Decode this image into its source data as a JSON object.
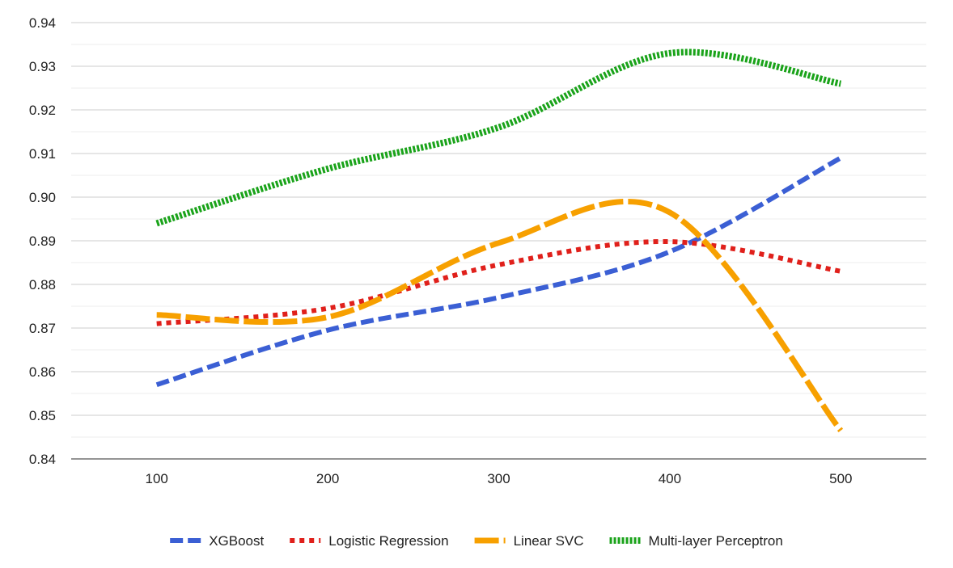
{
  "chart_data": {
    "type": "line",
    "title": "",
    "xlabel": "",
    "ylabel": "",
    "x": [
      100,
      200,
      300,
      400,
      500
    ],
    "ylim": [
      0.84,
      0.94
    ],
    "yticks": [
      "0.84",
      "0.85",
      "0.86",
      "0.87",
      "0.88",
      "0.89",
      "0.90",
      "0.91",
      "0.92",
      "0.93",
      "0.94"
    ],
    "xticks": [
      "100",
      "200",
      "300",
      "400",
      "500"
    ],
    "grid": true,
    "smooth": true,
    "legend_position": "bottom",
    "series": [
      {
        "name": "XGBoost",
        "values": [
          0.857,
          0.8695,
          0.877,
          0.8875,
          0.909
        ],
        "color": "#3b5fd4",
        "style": "dashed"
      },
      {
        "name": "Logistic Regression",
        "values": [
          0.871,
          0.8745,
          0.8845,
          0.8898,
          0.883
        ],
        "color": "#e0201b",
        "style": "dotted"
      },
      {
        "name": "Linear SVC",
        "values": [
          0.873,
          0.8725,
          0.8895,
          0.8965,
          0.8465
        ],
        "color": "#f7a000",
        "style": "long-dash"
      },
      {
        "name": "Multi-layer Perceptron",
        "values": [
          0.894,
          0.9065,
          0.916,
          0.933,
          0.926
        ],
        "color": "#1aa31a",
        "style": "fine-dotted"
      }
    ]
  }
}
